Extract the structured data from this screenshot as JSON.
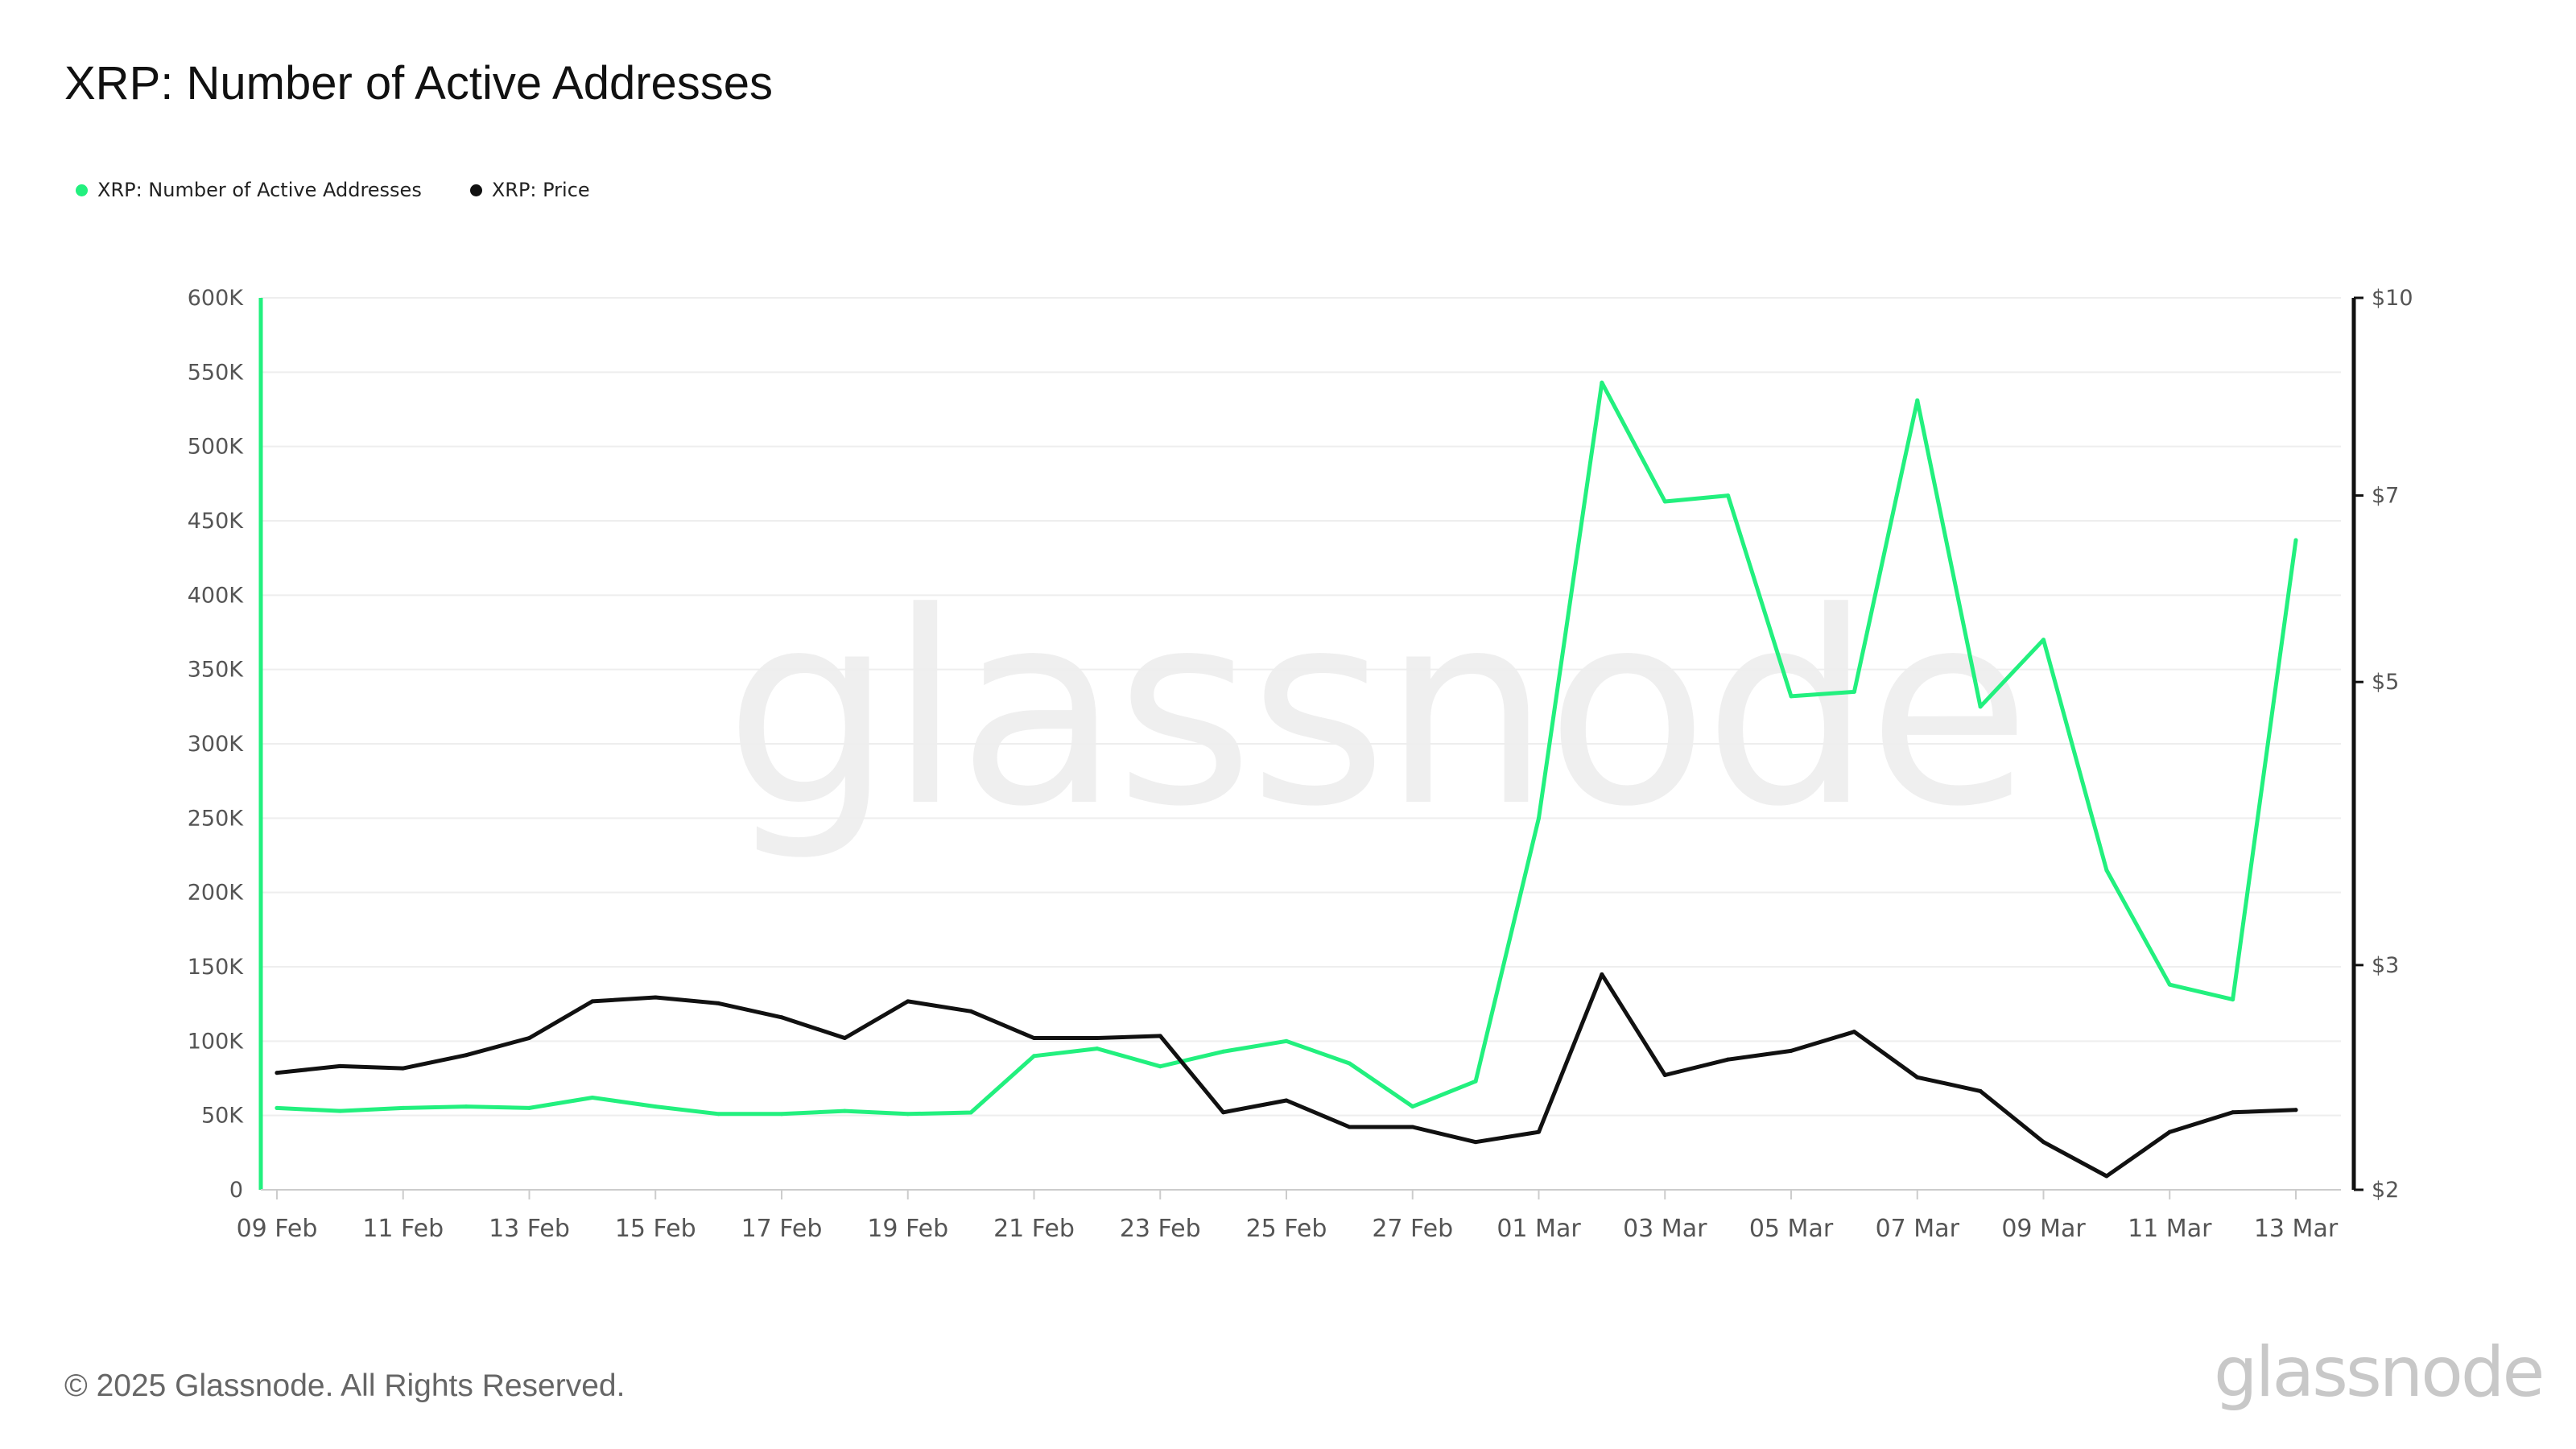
{
  "title": "XRP: Number of Active Addresses",
  "watermark": "glassnode",
  "footer": {
    "copyright": "© 2025 Glassnode. All Rights Reserved.",
    "brand": "glassnode"
  },
  "legend": [
    {
      "label": "XRP: Number of Active Addresses",
      "color": "#22f07e"
    },
    {
      "label": "XRP: Price",
      "color": "#111111"
    }
  ],
  "colors": {
    "active_addresses": "#22f07e",
    "price": "#111111",
    "grid": "#eeeeee",
    "axis_text": "#555555"
  },
  "chart_data": {
    "type": "line",
    "title": "XRP: Number of Active Addresses",
    "x": [
      "09 Feb",
      "10 Feb",
      "11 Feb",
      "12 Feb",
      "13 Feb",
      "14 Feb",
      "15 Feb",
      "16 Feb",
      "17 Feb",
      "18 Feb",
      "19 Feb",
      "20 Feb",
      "21 Feb",
      "22 Feb",
      "23 Feb",
      "24 Feb",
      "25 Feb",
      "26 Feb",
      "27 Feb",
      "28 Feb",
      "01 Mar",
      "02 Mar",
      "03 Mar",
      "04 Mar",
      "05 Mar",
      "06 Mar",
      "07 Mar",
      "08 Mar",
      "09 Mar",
      "10 Mar",
      "11 Mar",
      "12 Mar",
      "13 Mar"
    ],
    "x_tick_labels": [
      "09 Feb",
      "11 Feb",
      "13 Feb",
      "15 Feb",
      "17 Feb",
      "19 Feb",
      "21 Feb",
      "23 Feb",
      "25 Feb",
      "27 Feb",
      "01 Mar",
      "03 Mar",
      "05 Mar",
      "07 Mar",
      "09 Mar",
      "11 Mar",
      "13 Mar"
    ],
    "y_left": {
      "ticks": [
        "0",
        "50K",
        "100K",
        "150K",
        "200K",
        "250K",
        "300K",
        "350K",
        "400K",
        "450K",
        "500K",
        "550K",
        "600K"
      ],
      "range": [
        0,
        600000
      ]
    },
    "y_right": {
      "ticks": [
        "$2",
        "$3",
        "$5",
        "$7",
        "$10"
      ],
      "tick_values": [
        2,
        3,
        5,
        7,
        10
      ],
      "scale": "log",
      "range": [
        2,
        10
      ]
    },
    "grid": true,
    "legend_position": "top-left",
    "series": [
      {
        "name": "XRP: Number of Active Addresses",
        "axis": "left",
        "values": [
          55000,
          53000,
          55000,
          56000,
          55000,
          62000,
          56000,
          51000,
          51000,
          53000,
          51000,
          52000,
          90000,
          95000,
          83000,
          93000,
          100000,
          85000,
          56000,
          73000,
          250000,
          543000,
          463000,
          467000,
          332000,
          335000,
          531000,
          325000,
          370000,
          215000,
          138000,
          128000,
          437000
        ]
      },
      {
        "name": "XRP: Price",
        "axis": "right",
        "values": [
          2.47,
          2.5,
          2.49,
          2.55,
          2.63,
          2.81,
          2.83,
          2.8,
          2.73,
          2.63,
          2.81,
          2.76,
          2.63,
          2.63,
          2.64,
          2.3,
          2.35,
          2.24,
          2.24,
          2.18,
          2.22,
          2.95,
          2.46,
          2.53,
          2.57,
          2.66,
          2.45,
          2.39,
          2.18,
          2.05,
          2.22,
          2.3,
          2.31
        ]
      }
    ]
  }
}
